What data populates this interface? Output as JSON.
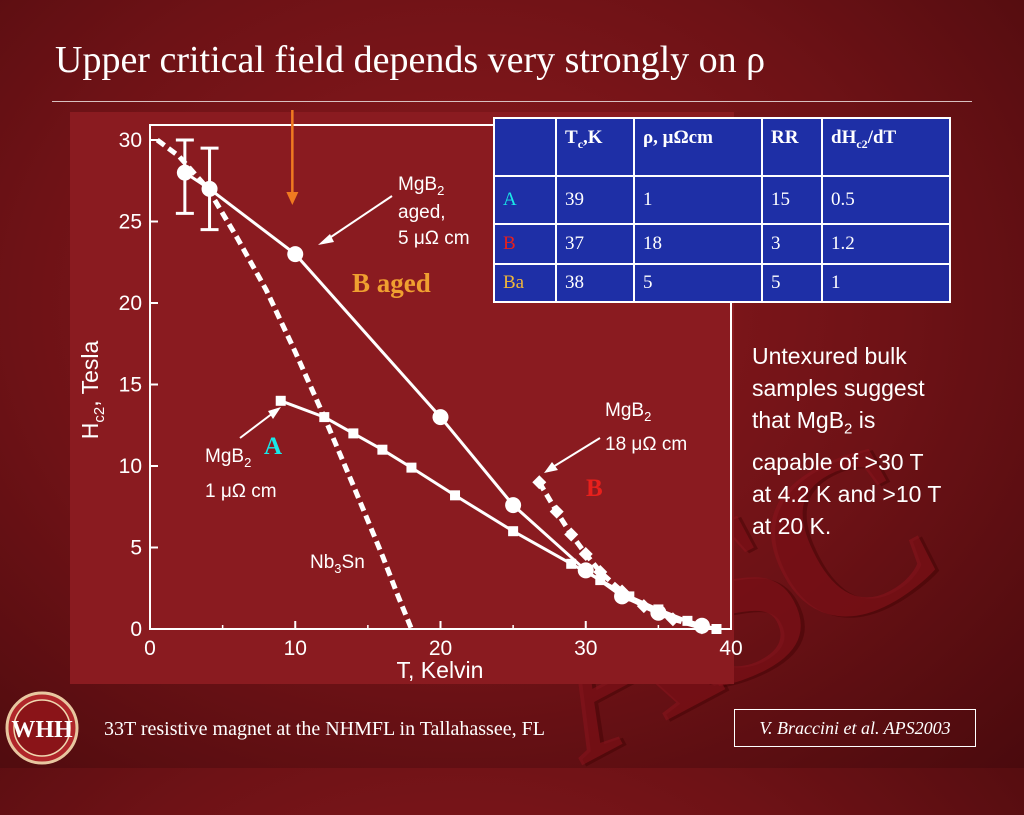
{
  "slide": {
    "title": "Upper critical field depends very strongly on ρ",
    "side_text_lines": [
      "Untexured bulk",
      "samples suggest",
      "that MgB",
      "2",
      " is",
      "capable of >30 T",
      "at 4.2 K and >10 T",
      "at 20 K."
    ],
    "footer": "33T resistive magnet at the NHMFL in Tallahassee, FL",
    "citation": "V. Braccini et al. APS2003",
    "watermark": "ASC",
    "logo_letters": "WHH"
  },
  "table": {
    "headers": {
      "tc_main": "T",
      "tc_sub": "c",
      "tc_unit": ",K",
      "rho": "ρ, μΩcm",
      "rr": "RR",
      "dh_main": "dH",
      "dh_sub": "c2",
      "dh_rest": "/dT"
    },
    "rows": [
      {
        "label": "A",
        "tc": "39",
        "rho": "1",
        "rr": "15",
        "dh": "0.5",
        "label_color": "#19e8e8"
      },
      {
        "label": "B",
        "tc": "37",
        "rho": "18",
        "rr": "3",
        "dh": "1.2",
        "label_color": "#e8201c"
      },
      {
        "label": "Ba",
        "tc": "38",
        "rho": "5",
        "rr": "5",
        "dh": "1",
        "label_color": "#f0b63a"
      }
    ]
  },
  "chart_data": {
    "type": "line",
    "xlabel": "T, Kelvin",
    "ylabel_main": "H",
    "ylabel_sub": "c2",
    "ylabel_rest": ", Tesla",
    "xlim": [
      0,
      40
    ],
    "ylim": [
      0,
      31
    ],
    "xticks": [
      0,
      10,
      20,
      30,
      40
    ],
    "yticks": [
      0,
      5,
      10,
      15,
      20,
      25,
      30
    ],
    "series": [
      {
        "name": "MgB2 aged 5 μΩ cm",
        "style": "solid-circle",
        "x": [
          2.4,
          4.1,
          10.0,
          20.0,
          25.0,
          30.0,
          32.5,
          35.0,
          38.0
        ],
        "y": [
          28.0,
          27.0,
          23.0,
          13.0,
          7.6,
          3.6,
          2.0,
          1.0,
          0.2
        ]
      },
      {
        "name": "MgB2 1 μΩ cm",
        "style": "solid-square",
        "x": [
          9.0,
          12.0,
          14.0,
          16.0,
          18.0,
          21.0,
          25.0,
          29.0,
          31.0,
          33.0,
          35.0,
          37.0,
          39.0
        ],
        "y": [
          14.0,
          13.0,
          12.0,
          11.0,
          9.9,
          8.2,
          6.0,
          4.0,
          3.0,
          2.0,
          1.2,
          0.5,
          0.0
        ]
      },
      {
        "name": "MgB2 18 μΩ cm",
        "style": "dashed-diamond",
        "x": [
          26.8,
          28.0,
          29.0,
          30.0,
          31.0,
          32.5,
          34.0,
          36.0,
          38.0
        ],
        "y": [
          9.0,
          7.2,
          5.8,
          4.6,
          3.5,
          2.3,
          1.4,
          0.6,
          0.1
        ]
      },
      {
        "name": "Nb3Sn",
        "style": "dashed",
        "x": [
          0.5,
          2.0,
          4.0,
          6.0,
          8.0,
          10.0,
          12.0,
          14.0,
          16.0,
          17.0,
          18.0
        ],
        "y": [
          30.0,
          29.0,
          27.0,
          24.0,
          20.8,
          17.0,
          13.0,
          8.8,
          4.5,
          2.2,
          0.0
        ]
      }
    ],
    "error_bars": [
      {
        "x": 2.4,
        "y_low": 25.5,
        "y_high": 30.0
      },
      {
        "x": 4.1,
        "y_low": 24.5,
        "y_high": 29.5
      }
    ],
    "annotations": {
      "aged_l1": "MgB",
      "aged_l1_sub": "2",
      "aged_l2": "aged,",
      "aged_l3": "5 μΩ cm",
      "a_l1": "MgB",
      "a_l1_sub": "2",
      "a_l2": "1 μΩ cm",
      "b_l1": "MgB",
      "b_l1_sub": "2",
      "b_l2": "18 μΩ cm",
      "nb_main": "Nb",
      "nb_sub": "3",
      "nb_rest": "Sn",
      "label_b_aged": "B aged",
      "label_a": "A",
      "label_b": "B"
    },
    "marker_arrow_x": 9.8,
    "colors": {
      "aged": "#f0a030",
      "a": "#19e8e8",
      "b": "#e8201c",
      "arrow": "#f07a20"
    }
  }
}
